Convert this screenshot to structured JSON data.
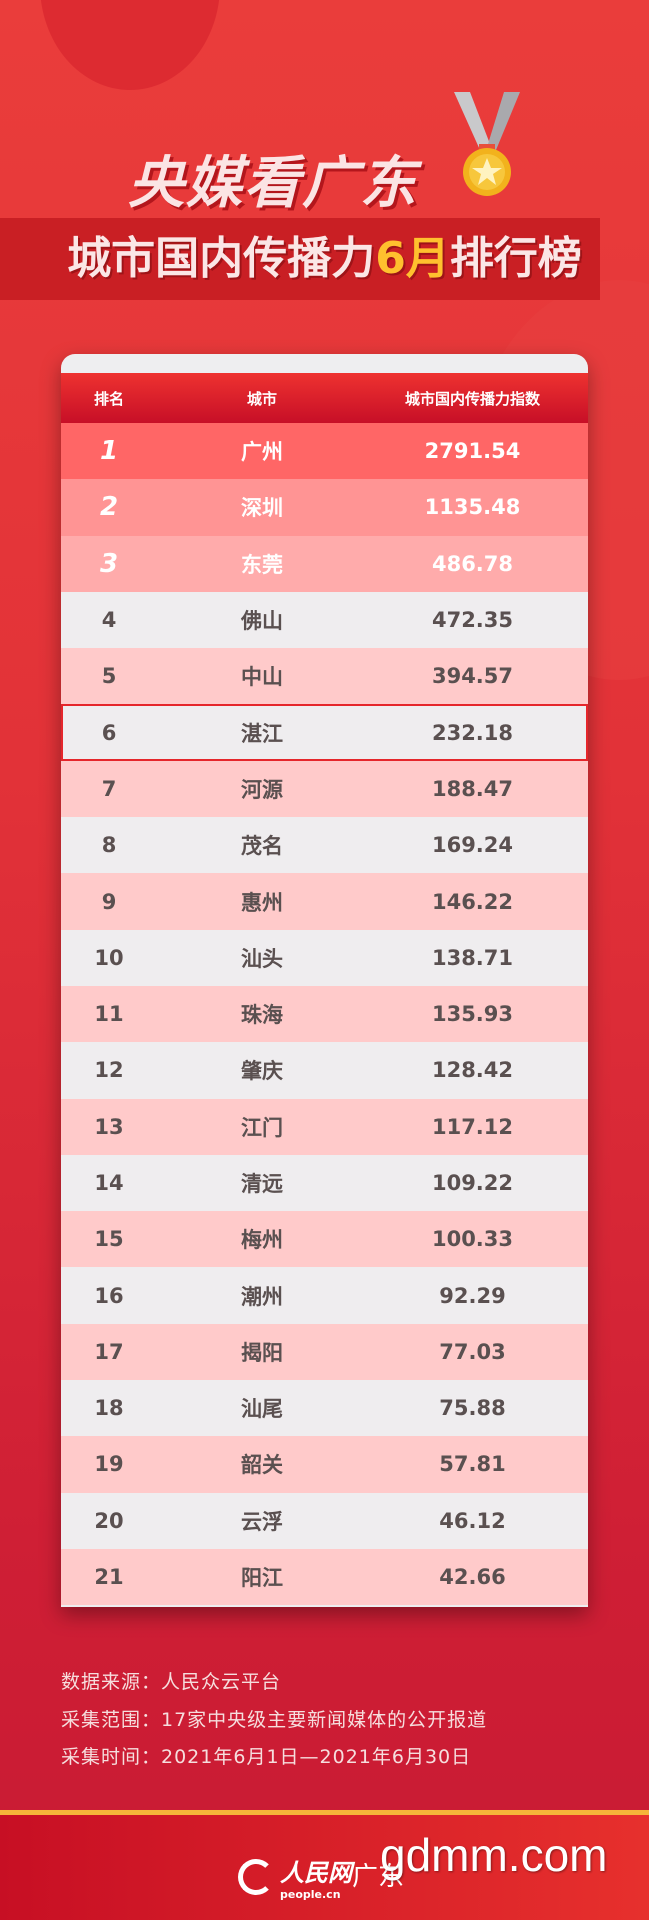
{
  "header": {
    "title": "央媒看广东",
    "subtitle_prefix": "城市国内传播力",
    "subtitle_month": "6月",
    "subtitle_suffix": "排行榜",
    "medal_icon": "medal-icon"
  },
  "table": {
    "columns": [
      "排名",
      "城市",
      "城市国内传播力指数"
    ],
    "highlight_rank": "6",
    "rows": [
      {
        "rank": "1",
        "city": "广州",
        "value": "2791.54"
      },
      {
        "rank": "2",
        "city": "深圳",
        "value": "1135.48"
      },
      {
        "rank": "3",
        "city": "东莞",
        "value": "486.78"
      },
      {
        "rank": "4",
        "city": "佛山",
        "value": "472.35"
      },
      {
        "rank": "5",
        "city": "中山",
        "value": "394.57"
      },
      {
        "rank": "6",
        "city": "湛江",
        "value": "232.18"
      },
      {
        "rank": "7",
        "city": "河源",
        "value": "188.47"
      },
      {
        "rank": "8",
        "city": "茂名",
        "value": "169.24"
      },
      {
        "rank": "9",
        "city": "惠州",
        "value": "146.22"
      },
      {
        "rank": "10",
        "city": "汕头",
        "value": "138.71"
      },
      {
        "rank": "11",
        "city": "珠海",
        "value": "135.93"
      },
      {
        "rank": "12",
        "city": "肇庆",
        "value": "128.42"
      },
      {
        "rank": "13",
        "city": "江门",
        "value": "117.12"
      },
      {
        "rank": "14",
        "city": "清远",
        "value": "109.22"
      },
      {
        "rank": "15",
        "city": "梅州",
        "value": "100.33"
      },
      {
        "rank": "16",
        "city": "潮州",
        "value": "92.29"
      },
      {
        "rank": "17",
        "city": "揭阳",
        "value": "77.03"
      },
      {
        "rank": "18",
        "city": "汕尾",
        "value": "75.88"
      },
      {
        "rank": "19",
        "city": "韶关",
        "value": "57.81"
      },
      {
        "rank": "20",
        "city": "云浮",
        "value": "46.12"
      },
      {
        "rank": "21",
        "city": "阳江",
        "value": "42.66"
      }
    ],
    "row_colors": {
      "r1": "#ff6666",
      "r2": "#ff9494",
      "r3": "#ffabab",
      "odd": "#ffcaca",
      "even": "#efedef"
    }
  },
  "footer": {
    "source": "数据来源：人民众云平台",
    "scope": "采集范围：17家中央级主要新闻媒体的公开报道",
    "period": "采集时间：2021年6月1日—2021年6月30日"
  },
  "branding": {
    "logo_cn": "人民网",
    "logo_en": "people.cn",
    "region": "广东",
    "watermark": "gdmm.com"
  }
}
